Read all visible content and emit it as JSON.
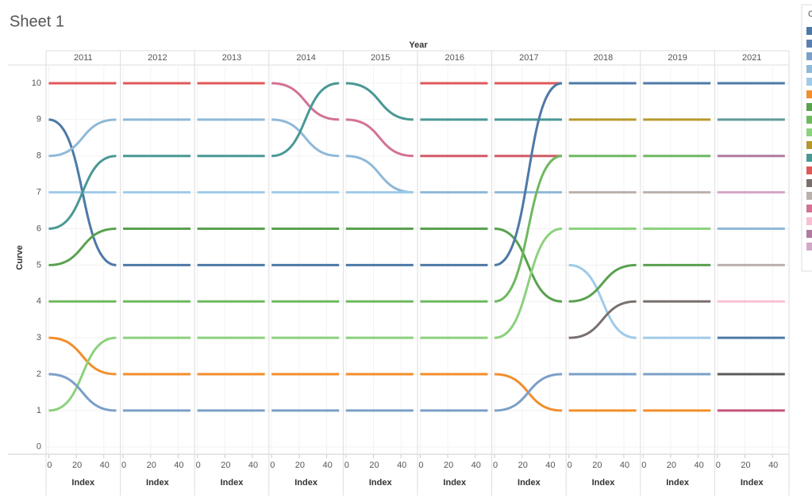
{
  "chart_data": {
    "type": "bump",
    "title": "Sheet 1",
    "column_title": "Year",
    "x_title": "Index",
    "y_title": "Curve",
    "legend_title": "C",
    "legend_colors": [
      "#4e79a7",
      "#5b7faf",
      "#7b9fc8",
      "#8fb9d8",
      "#a0cbe8",
      "#f28e2b",
      "#59a14f",
      "#6fb860",
      "#8cd17d",
      "#b6992d",
      "#499894",
      "#e15759",
      "#79706e",
      "#bab0ac",
      "#d37295",
      "#fabfd2",
      "#b07aa1",
      "#d4a6c8"
    ],
    "x": [
      0,
      49
    ],
    "xlim": [
      -2,
      52
    ],
    "xticks": [
      0,
      20,
      40
    ],
    "ylim": [
      -0.2,
      10.5
    ],
    "yticks": [
      0,
      1,
      2,
      3,
      4,
      5,
      6,
      7,
      8,
      9,
      10
    ],
    "grid": true,
    "panels": [
      {
        "year": "2011",
        "lines": [
          {
            "color": "#e15759",
            "values": [
              10,
              10
            ]
          },
          {
            "color": "#4e79a7",
            "values": [
              9,
              5
            ]
          },
          {
            "color": "#8fb9d8",
            "values": [
              8,
              9
            ]
          },
          {
            "color": "#a0cbe8",
            "values": [
              7,
              7
            ]
          },
          {
            "color": "#499894",
            "values": [
              6,
              8
            ]
          },
          {
            "color": "#59a14f",
            "values": [
              5,
              6
            ]
          },
          {
            "color": "#6fb860",
            "values": [
              4,
              4
            ]
          },
          {
            "color": "#f28e2b",
            "values": [
              3,
              2
            ]
          },
          {
            "color": "#8cd17d",
            "values": [
              1,
              3
            ]
          },
          {
            "color": "#7b9fc8",
            "values": [
              2,
              1
            ]
          }
        ]
      },
      {
        "year": "2012",
        "lines": [
          {
            "color": "#e15759",
            "values": [
              10,
              10
            ]
          },
          {
            "color": "#8fb9d8",
            "values": [
              9,
              9
            ]
          },
          {
            "color": "#499894",
            "values": [
              8,
              8
            ]
          },
          {
            "color": "#a0cbe8",
            "values": [
              7,
              7
            ]
          },
          {
            "color": "#59a14f",
            "values": [
              6,
              6
            ]
          },
          {
            "color": "#4e79a7",
            "values": [
              5,
              5
            ]
          },
          {
            "color": "#6fb860",
            "values": [
              4,
              4
            ]
          },
          {
            "color": "#8cd17d",
            "values": [
              3,
              3
            ]
          },
          {
            "color": "#f28e2b",
            "values": [
              2,
              2
            ]
          },
          {
            "color": "#7b9fc8",
            "values": [
              1,
              1
            ]
          }
        ]
      },
      {
        "year": "2013",
        "lines": [
          {
            "color": "#e15759",
            "values": [
              10,
              10
            ]
          },
          {
            "color": "#8fb9d8",
            "values": [
              9,
              9
            ]
          },
          {
            "color": "#499894",
            "values": [
              8,
              8
            ]
          },
          {
            "color": "#a0cbe8",
            "values": [
              7,
              7
            ]
          },
          {
            "color": "#59a14f",
            "values": [
              6,
              6
            ]
          },
          {
            "color": "#4e79a7",
            "values": [
              5,
              5
            ]
          },
          {
            "color": "#6fb860",
            "values": [
              4,
              4
            ]
          },
          {
            "color": "#8cd17d",
            "values": [
              3,
              3
            ]
          },
          {
            "color": "#f28e2b",
            "values": [
              2,
              2
            ]
          },
          {
            "color": "#7b9fc8",
            "values": [
              1,
              1
            ]
          }
        ]
      },
      {
        "year": "2014",
        "lines": [
          {
            "color": "#d37295",
            "values": [
              10,
              9
            ]
          },
          {
            "color": "#8fb9d8",
            "values": [
              9,
              8
            ]
          },
          {
            "color": "#499894",
            "values": [
              8,
              10
            ]
          },
          {
            "color": "#a0cbe8",
            "values": [
              7,
              7
            ]
          },
          {
            "color": "#59a14f",
            "values": [
              6,
              6
            ]
          },
          {
            "color": "#4e79a7",
            "values": [
              5,
              5
            ]
          },
          {
            "color": "#6fb860",
            "values": [
              4,
              4
            ]
          },
          {
            "color": "#8cd17d",
            "values": [
              3,
              3
            ]
          },
          {
            "color": "#f28e2b",
            "values": [
              2,
              2
            ]
          },
          {
            "color": "#7b9fc8",
            "values": [
              1,
              1
            ]
          }
        ]
      },
      {
        "year": "2015",
        "lines": [
          {
            "color": "#499894",
            "values": [
              10,
              9
            ]
          },
          {
            "color": "#d37295",
            "values": [
              9,
              8
            ]
          },
          {
            "color": "#8fb9d8",
            "values": [
              8,
              7
            ]
          },
          {
            "color": "#a0cbe8",
            "values": [
              7,
              7
            ]
          },
          {
            "color": "#59a14f",
            "values": [
              6,
              6
            ]
          },
          {
            "color": "#4e79a7",
            "values": [
              5,
              5
            ]
          },
          {
            "color": "#6fb860",
            "values": [
              4,
              4
            ]
          },
          {
            "color": "#8cd17d",
            "values": [
              3,
              3
            ]
          },
          {
            "color": "#f28e2b",
            "values": [
              2,
              2
            ]
          },
          {
            "color": "#7b9fc8",
            "values": [
              1,
              1
            ]
          }
        ]
      },
      {
        "year": "2016",
        "lines": [
          {
            "color": "#e15759",
            "values": [
              10,
              10
            ]
          },
          {
            "color": "#499894",
            "values": [
              9,
              9
            ]
          },
          {
            "color": "#d05a66",
            "values": [
              8,
              8
            ]
          },
          {
            "color": "#8fb9d8",
            "values": [
              7,
              7
            ]
          },
          {
            "color": "#59a14f",
            "values": [
              6,
              6
            ]
          },
          {
            "color": "#4e79a7",
            "values": [
              5,
              5
            ]
          },
          {
            "color": "#6fb860",
            "values": [
              4,
              4
            ]
          },
          {
            "color": "#8cd17d",
            "values": [
              3,
              3
            ]
          },
          {
            "color": "#f28e2b",
            "values": [
              2,
              2
            ]
          },
          {
            "color": "#7b9fc8",
            "values": [
              1,
              1
            ]
          }
        ]
      },
      {
        "year": "2017",
        "lines": [
          {
            "color": "#e15759",
            "values": [
              10,
              10
            ]
          },
          {
            "color": "#499894",
            "values": [
              9,
              9
            ]
          },
          {
            "color": "#d05a66",
            "values": [
              8,
              8
            ]
          },
          {
            "color": "#8fb9d8",
            "values": [
              7,
              7
            ]
          },
          {
            "color": "#59a14f",
            "values": [
              6,
              4
            ]
          },
          {
            "color": "#4e79a7",
            "values": [
              5,
              10
            ]
          },
          {
            "color": "#6fb860",
            "values": [
              4,
              8
            ]
          },
          {
            "color": "#8cd17d",
            "values": [
              3,
              6
            ]
          },
          {
            "color": "#f28e2b",
            "values": [
              2,
              1
            ]
          },
          {
            "color": "#7b9fc8",
            "values": [
              1,
              2
            ]
          }
        ]
      },
      {
        "year": "2018",
        "lines": [
          {
            "color": "#4e79a7",
            "values": [
              10,
              10
            ]
          },
          {
            "color": "#b6992d",
            "values": [
              9,
              9
            ]
          },
          {
            "color": "#6fb860",
            "values": [
              8,
              8
            ]
          },
          {
            "color": "#bab0ac",
            "values": [
              7,
              7
            ]
          },
          {
            "color": "#8cd17d",
            "values": [
              6,
              6
            ]
          },
          {
            "color": "#a0cbe8",
            "values": [
              5,
              3
            ]
          },
          {
            "color": "#59a14f",
            "values": [
              4,
              5
            ]
          },
          {
            "color": "#79706e",
            "values": [
              3,
              4
            ]
          },
          {
            "color": "#7b9fc8",
            "values": [
              2,
              2
            ]
          },
          {
            "color": "#f28e2b",
            "values": [
              1,
              1
            ]
          }
        ]
      },
      {
        "year": "2019",
        "lines": [
          {
            "color": "#4e79a7",
            "values": [
              10,
              10
            ]
          },
          {
            "color": "#b6992d",
            "values": [
              9,
              9
            ]
          },
          {
            "color": "#6fb860",
            "values": [
              8,
              8
            ]
          },
          {
            "color": "#bab0ac",
            "values": [
              7,
              7
            ]
          },
          {
            "color": "#8cd17d",
            "values": [
              6,
              6
            ]
          },
          {
            "color": "#59a14f",
            "values": [
              5,
              5
            ]
          },
          {
            "color": "#79706e",
            "values": [
              4,
              4
            ]
          },
          {
            "color": "#a0cbe8",
            "values": [
              3,
              3
            ]
          },
          {
            "color": "#7b9fc8",
            "values": [
              2,
              2
            ]
          },
          {
            "color": "#f28e2b",
            "values": [
              1,
              1
            ]
          }
        ]
      },
      {
        "year": "2021",
        "lines": [
          {
            "color": "#4e79a7",
            "values": [
              10,
              10
            ]
          },
          {
            "color": "#5f9a9a",
            "values": [
              9,
              9
            ]
          },
          {
            "color": "#b07aa1",
            "values": [
              8,
              8
            ]
          },
          {
            "color": "#d4a6c8",
            "values": [
              7,
              7
            ]
          },
          {
            "color": "#8fb9d8",
            "values": [
              6,
              6
            ]
          },
          {
            "color": "#bab0ac",
            "values": [
              5,
              5
            ]
          },
          {
            "color": "#fabfd2",
            "values": [
              4,
              4
            ]
          },
          {
            "color": "#4e79a7",
            "values": [
              3,
              3
            ]
          },
          {
            "color": "#5a5a5a",
            "values": [
              2,
              2
            ]
          },
          {
            "color": "#c2557e",
            "values": [
              1,
              1
            ]
          }
        ]
      }
    ]
  }
}
